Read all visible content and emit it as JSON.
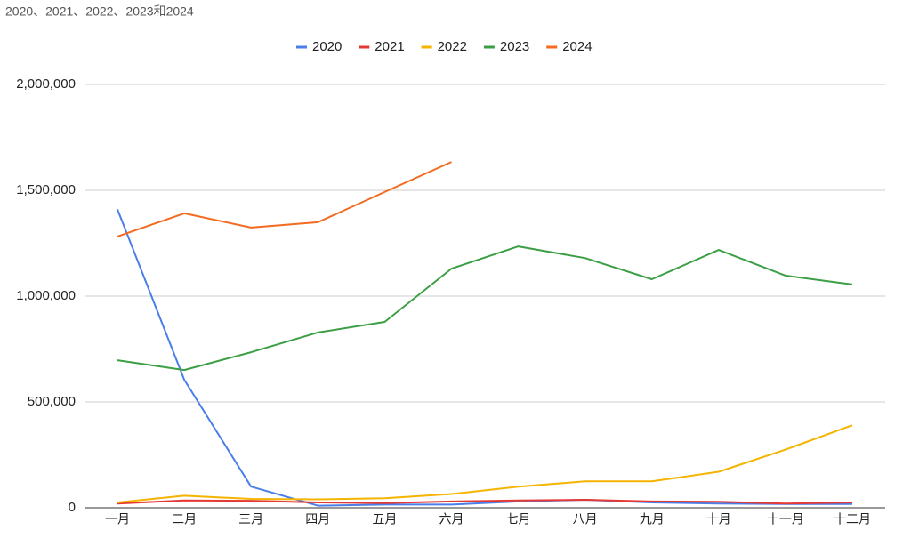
{
  "chart_data": {
    "type": "line",
    "title": "2020、2021、2022、2023和2024",
    "categories": [
      "一月",
      "二月",
      "三月",
      "四月",
      "五月",
      "六月",
      "七月",
      "八月",
      "九月",
      "十月",
      "十一月",
      "十二月"
    ],
    "series": [
      {
        "name": "2020",
        "color": "#4a7ee8",
        "values": [
          1410000,
          605000,
          100000,
          10000,
          15000,
          15000,
          30000,
          38000,
          25000,
          20000,
          18000,
          18000
        ]
      },
      {
        "name": "2021",
        "color": "#e53935",
        "values": [
          20000,
          35000,
          33000,
          25000,
          22000,
          30000,
          35000,
          38000,
          30000,
          28000,
          20000,
          25000
        ]
      },
      {
        "name": "2022",
        "color": "#f4b400",
        "values": [
          25000,
          57000,
          42000,
          40000,
          45000,
          65000,
          100000,
          125000,
          125000,
          170000,
          275000,
          390000
        ]
      },
      {
        "name": "2023",
        "color": "#3c9f46",
        "values": [
          697000,
          651000,
          735000,
          828000,
          878000,
          1130000,
          1235000,
          1180000,
          1080000,
          1218000,
          1097000,
          1055000
        ]
      },
      {
        "name": "2024",
        "color": "#f26b21",
        "values": [
          1282000,
          1391000,
          1324000,
          1349000,
          1492000,
          1634000,
          null,
          null,
          null,
          null,
          null,
          null
        ]
      }
    ],
    "ylim": [
      0,
      2000000
    ],
    "yticks": [
      0,
      {
        "value": 500000,
        "label": "500,000"
      },
      {
        "value": 1000000,
        "label": "1,000,000"
      },
      {
        "value": 1500000,
        "label": "1,500,000"
      },
      {
        "value": 2000000,
        "label": "2,000,000"
      }
    ],
    "grid": true,
    "legend": "top"
  }
}
